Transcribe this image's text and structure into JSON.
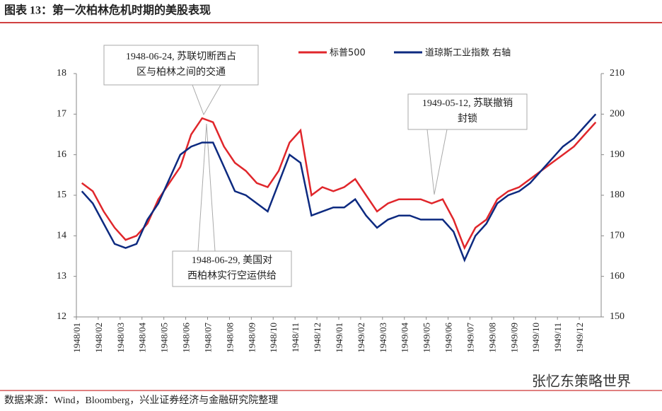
{
  "chart_data": {
    "type": "line",
    "title": "图表 13：第一次柏林危机时期的美股表现",
    "source": "数据来源：Wind，Bloomberg，兴业证券经济与金融研究院整理",
    "watermark": "张忆东策略世界",
    "categories": [
      "1948/01",
      null,
      "1948/02",
      null,
      "1948/03",
      null,
      "1948/04",
      null,
      "1948/05",
      null,
      "1948/06",
      null,
      "1948/07",
      null,
      "1948/08",
      null,
      "1948/09",
      null,
      "1948/10",
      null,
      "1948/11",
      null,
      "1948/12",
      null,
      "1949/01",
      null,
      "1949/02",
      null,
      "1949/03",
      null,
      "1949/04",
      null,
      "1949/05",
      null,
      "1949/06",
      null,
      "1949/07",
      null,
      "1949/08",
      null,
      "1949/09",
      null,
      "1949/10",
      null,
      "1949/11",
      null,
      "1949/12",
      null
    ],
    "series": [
      {
        "name": "标普500",
        "color": "#e0262b",
        "values": [
          15.3,
          15.1,
          14.6,
          14.2,
          13.9,
          14.0,
          14.3,
          14.9,
          15.3,
          15.7,
          16.5,
          16.9,
          16.8,
          16.2,
          15.8,
          15.6,
          15.3,
          15.2,
          15.6,
          16.3,
          16.6,
          15.0,
          15.2,
          15.1,
          15.2,
          15.4,
          15.0,
          14.6,
          14.8,
          14.9,
          14.9,
          14.9,
          14.8,
          14.9,
          14.4,
          13.7,
          14.2,
          14.4,
          14.9,
          15.1,
          15.2,
          15.4,
          15.6,
          15.8,
          16.0,
          16.2,
          16.5,
          16.8
        ]
      },
      {
        "name": "道琼斯工业指数 右轴",
        "color": "#0d2a80",
        "axis": "y2",
        "values": [
          181,
          178,
          173,
          168,
          167,
          168,
          174,
          178,
          184,
          190,
          192,
          193,
          193,
          187,
          181,
          180,
          178,
          176,
          183,
          190,
          188,
          175,
          176,
          177,
          177,
          179,
          175,
          172,
          174,
          175,
          175,
          174,
          174,
          174,
          171,
          164,
          170,
          173,
          178,
          180,
          181,
          183,
          186,
          189,
          192,
          194,
          197,
          200
        ]
      }
    ],
    "ylim": [
      12,
      18
    ],
    "yticks": [
      12,
      13,
      14,
      15,
      16,
      17,
      18
    ],
    "y2lim": [
      150,
      210
    ],
    "y2ticks": [
      150,
      160,
      170,
      180,
      190,
      200,
      210
    ],
    "annotations": [
      {
        "text": [
          "1948-06-24, 苏联切断西占",
          "区与柏林之间的交通"
        ]
      },
      {
        "text": [
          "1948-06-29, 美国对",
          "西柏林实行空运供给"
        ]
      },
      {
        "text": [
          "1949-05-12, 苏联撤销",
          "封锁"
        ]
      }
    ]
  }
}
